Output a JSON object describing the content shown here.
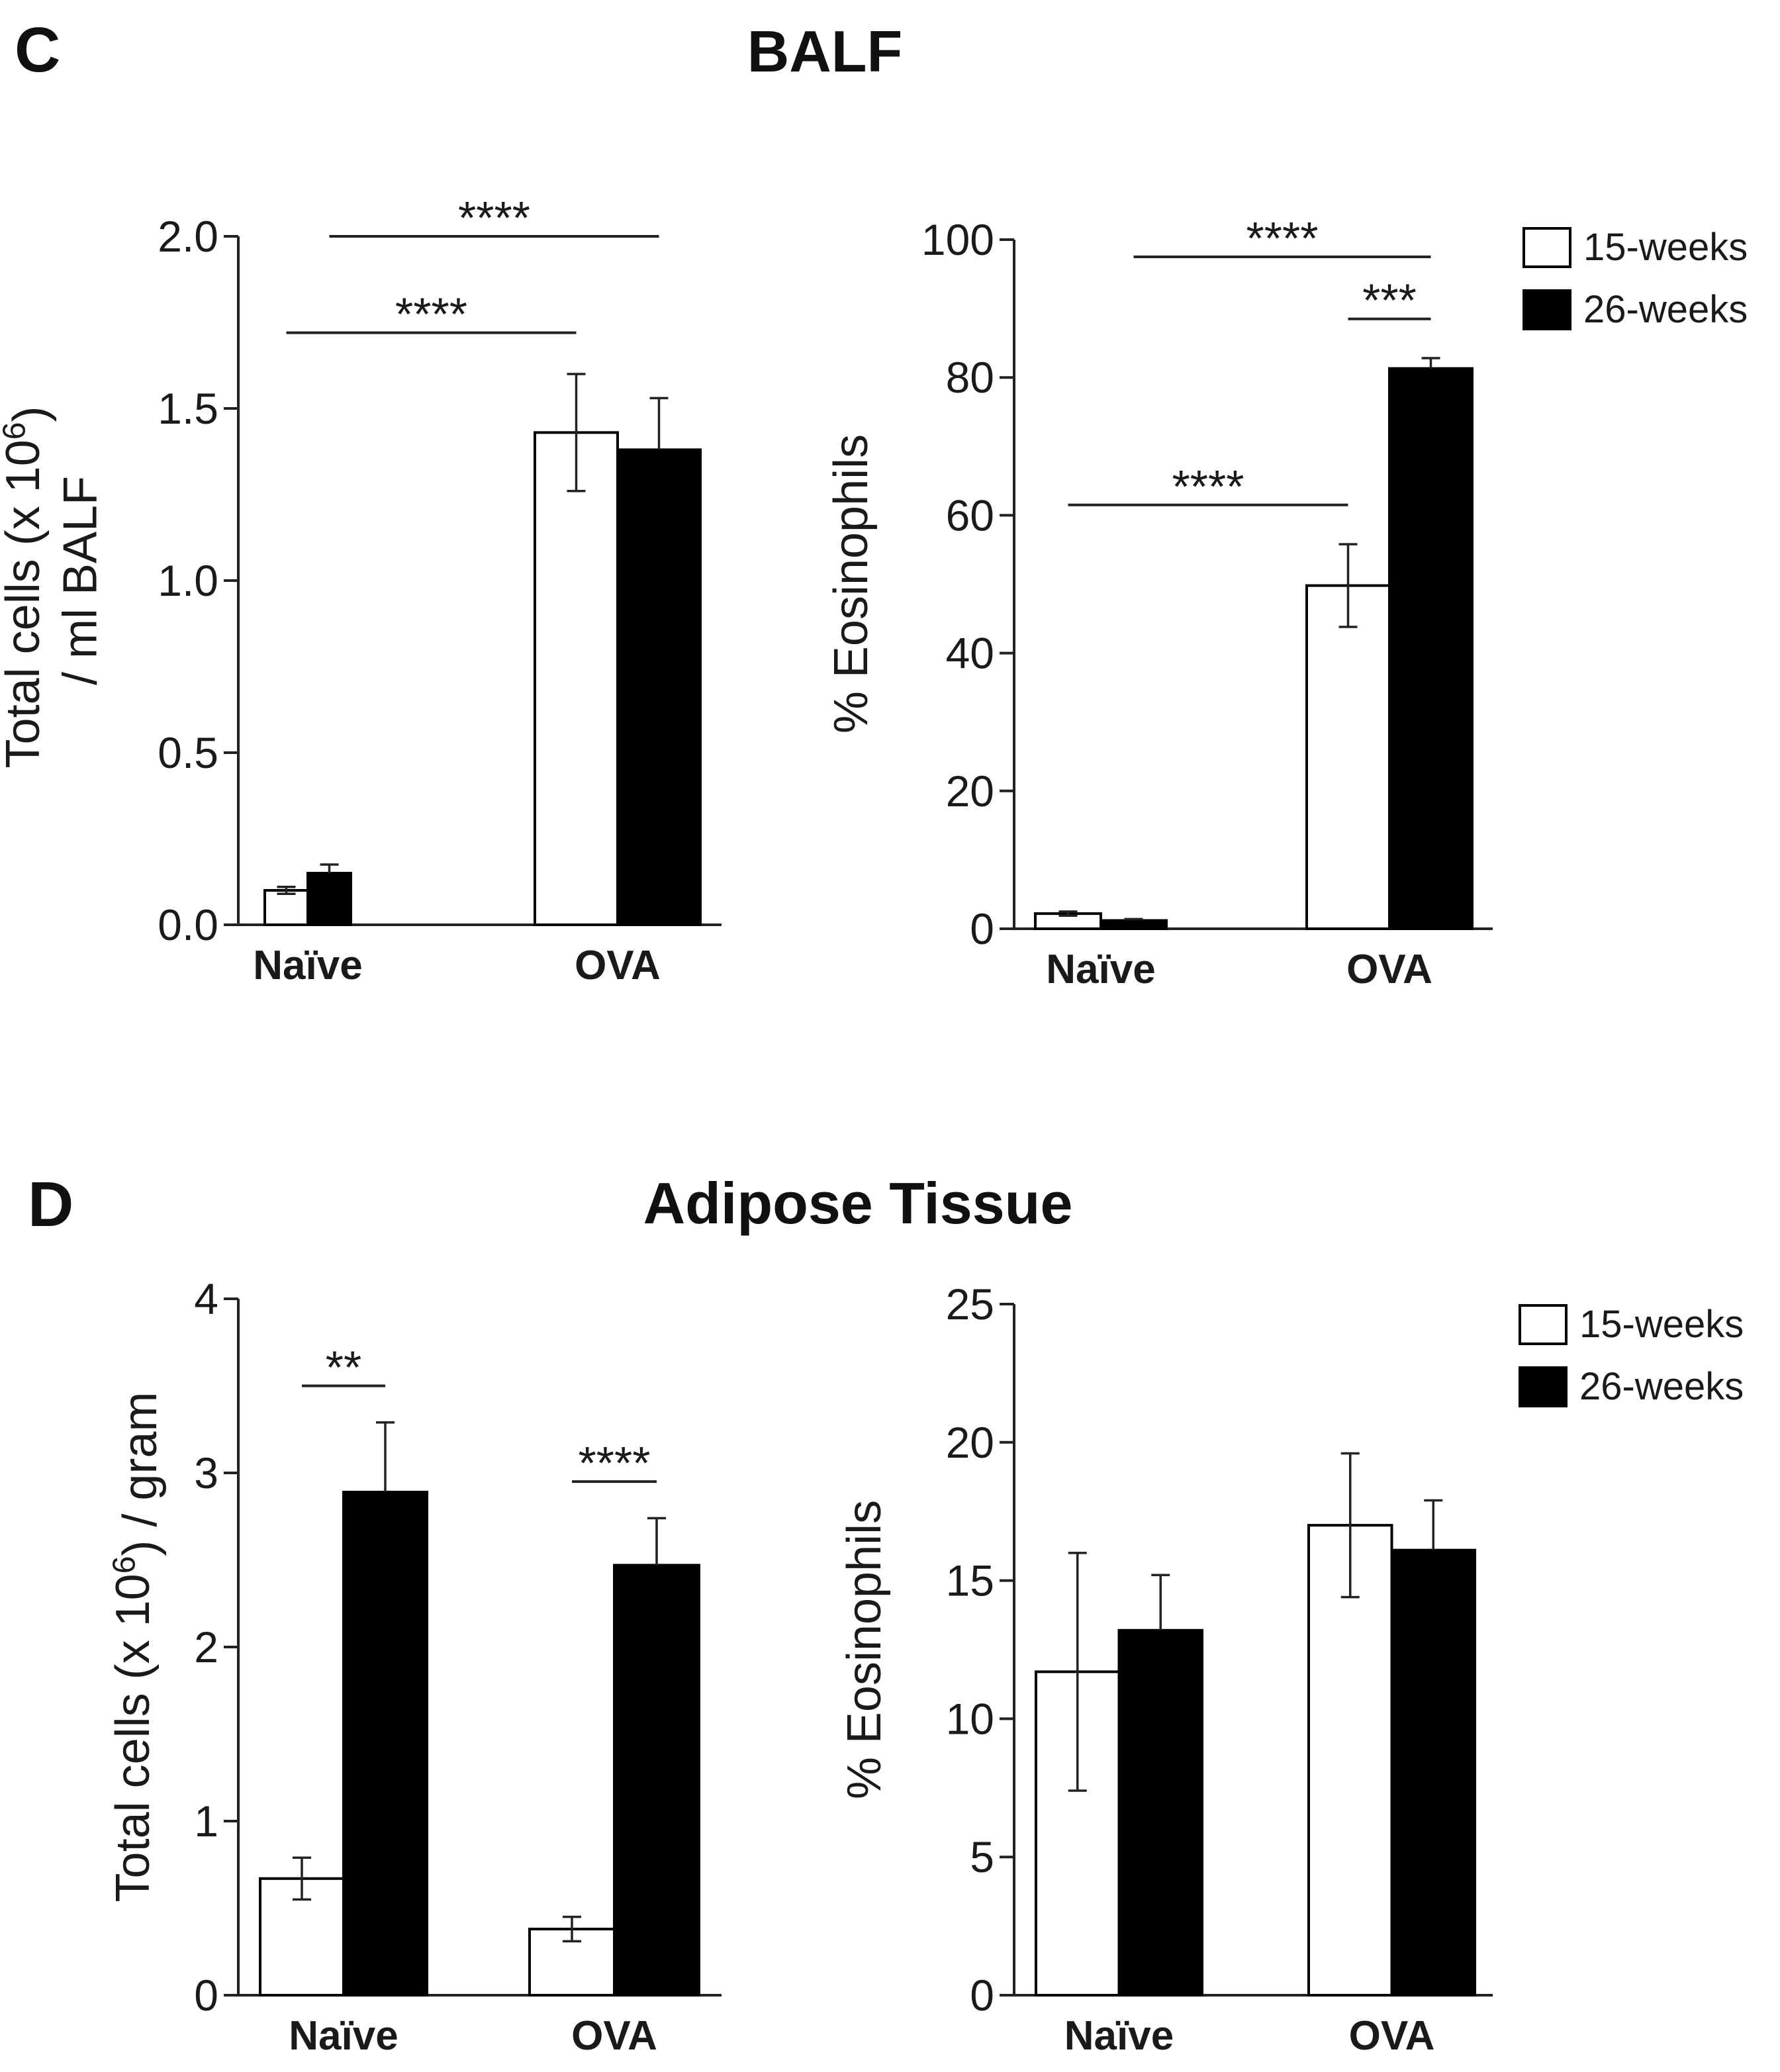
{
  "figure": {
    "panels": [
      {
        "letter": "C",
        "title": "BALF"
      },
      {
        "letter": "D",
        "title": "Adipose Tissue"
      }
    ]
  },
  "chart_data": [
    {
      "type": "bar",
      "panel": "C",
      "title": "BALF",
      "ylabel": "Total cells (x 10^6) / ml BALF",
      "ylabel_lines": [
        "Total cells (x 10",
        "6",
        ") ",
        "/ ml BALF"
      ],
      "xlabel": "",
      "categories": [
        "Naïve",
        "OVA"
      ],
      "ylim": [
        0,
        2.0
      ],
      "yticks": [
        0.0,
        0.5,
        1.0,
        1.5,
        2.0
      ],
      "ytick_labels": [
        "0.0",
        "0.5",
        "1.0",
        "1.5",
        "2.0"
      ],
      "series": [
        {
          "name": "15-weeks",
          "color": "#ffffff",
          "values": [
            0.1,
            1.43
          ],
          "errors": [
            0.01,
            0.17
          ]
        },
        {
          "name": "26-weeks",
          "color": "#000000",
          "values": [
            0.15,
            1.38
          ],
          "errors": [
            0.025,
            0.15
          ]
        }
      ],
      "significance": [
        {
          "label": "****",
          "from": {
            "category": 0,
            "series": 0
          },
          "to": {
            "category": 1,
            "series": 0
          },
          "y": 1.72
        },
        {
          "label": "****",
          "from": {
            "category": 0,
            "series": 1
          },
          "to": {
            "category": 1,
            "series": 1
          },
          "y": 2.0
        }
      ],
      "legend": null
    },
    {
      "type": "bar",
      "panel": "C",
      "title": "BALF",
      "ylabel": "% Eosinophils",
      "ylabel_lines": [
        "% Eosinophils"
      ],
      "xlabel": "",
      "categories": [
        "Naïve",
        "OVA"
      ],
      "ylim": [
        0,
        100
      ],
      "yticks": [
        0,
        20,
        40,
        60,
        80,
        100
      ],
      "ytick_labels": [
        "0",
        "20",
        "40",
        "60",
        "80",
        "100"
      ],
      "series": [
        {
          "name": "15-weeks",
          "color": "#ffffff",
          "values": [
            2.2,
            49.8
          ],
          "errors": [
            0.3,
            6.0
          ]
        },
        {
          "name": "26-weeks",
          "color": "#000000",
          "values": [
            1.2,
            81.3
          ],
          "errors": [
            0.2,
            1.5
          ]
        }
      ],
      "significance": [
        {
          "label": "****",
          "from": {
            "category": 0,
            "series": 0
          },
          "to": {
            "category": 1,
            "series": 0
          },
          "y": 61.5
        },
        {
          "label": "***",
          "from": {
            "category": 1,
            "series": 0
          },
          "to": {
            "category": 1,
            "series": 1
          },
          "y": 88.5
        },
        {
          "label": "****",
          "from": {
            "category": 0,
            "series": 1
          },
          "to": {
            "category": 1,
            "series": 1
          },
          "y": 97.5
        }
      ],
      "legend": {
        "position": "top-right",
        "entries": [
          "15-weeks",
          "26-weeks"
        ]
      }
    },
    {
      "type": "bar",
      "panel": "D",
      "title": "Adipose Tissue",
      "ylabel": "Total cells (x 10^6) / gram",
      "ylabel_lines": [
        "Total cells (x 10",
        "6",
        ") / gram"
      ],
      "xlabel": "",
      "categories": [
        "Naïve",
        "OVA"
      ],
      "ylim": [
        0,
        4
      ],
      "yticks": [
        0,
        1,
        2,
        3,
        4
      ],
      "ytick_labels": [
        "0",
        "1",
        "2",
        "3",
        "4"
      ],
      "series": [
        {
          "name": "15-weeks",
          "color": "#ffffff",
          "values": [
            0.67,
            0.38
          ],
          "errors": [
            0.12,
            0.07
          ]
        },
        {
          "name": "26-weeks",
          "color": "#000000",
          "values": [
            2.89,
            2.47
          ],
          "errors": [
            0.4,
            0.27
          ]
        }
      ],
      "significance": [
        {
          "label": "**",
          "from": {
            "category": 0,
            "series": 0
          },
          "to": {
            "category": 0,
            "series": 1
          },
          "y": 3.5
        },
        {
          "label": "****",
          "from": {
            "category": 1,
            "series": 0
          },
          "to": {
            "category": 1,
            "series": 1
          },
          "y": 2.95
        }
      ],
      "legend": null
    },
    {
      "type": "bar",
      "panel": "D",
      "title": "Adipose Tissue",
      "ylabel": "% Eosinophils",
      "ylabel_lines": [
        "% Eosinophils"
      ],
      "xlabel": "",
      "categories": [
        "Naïve",
        "OVA"
      ],
      "ylim": [
        0,
        25
      ],
      "yticks": [
        0,
        5,
        10,
        15,
        20,
        25
      ],
      "ytick_labels": [
        "0",
        "5",
        "10",
        "15",
        "20",
        "25"
      ],
      "series": [
        {
          "name": "15-weeks",
          "color": "#ffffff",
          "values": [
            11.7,
            17.0
          ],
          "errors": [
            4.3,
            2.6
          ]
        },
        {
          "name": "26-weeks",
          "color": "#000000",
          "values": [
            13.2,
            16.1
          ],
          "errors": [
            2.0,
            1.8
          ]
        }
      ],
      "significance": [],
      "legend": {
        "position": "top-right",
        "entries": [
          "15-weeks",
          "26-weeks"
        ]
      }
    }
  ]
}
